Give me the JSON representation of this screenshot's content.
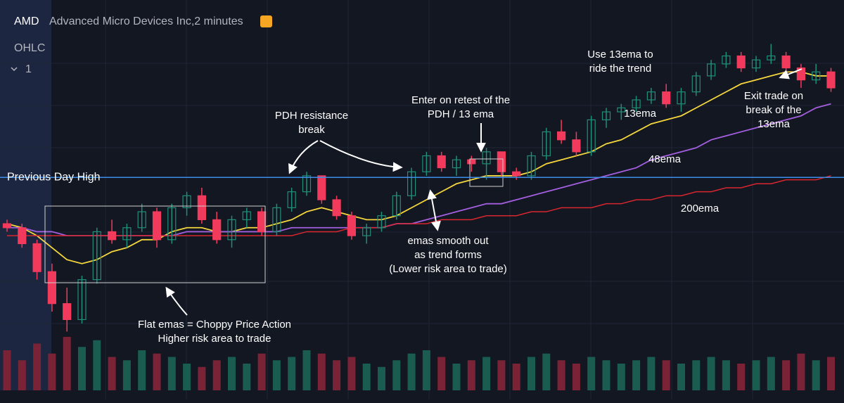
{
  "header": {
    "symbol": "AMD",
    "description": "Advanced Micro Devices Inc,2 minutes",
    "study": "OHLC",
    "interval": "1"
  },
  "chart_data": {
    "type": "candlestick",
    "ylim": [
      0,
      100
    ],
    "y2lim": [
      0,
      100
    ],
    "up_color": "#1f8f79",
    "down_color": "#f23a5c",
    "candles": [
      [
        44,
        45,
        42,
        43
      ],
      [
        43,
        44,
        38,
        39
      ],
      [
        39,
        40,
        30,
        32
      ],
      [
        32,
        34,
        22,
        24
      ],
      [
        24,
        28,
        17,
        20
      ],
      [
        20,
        31,
        19,
        30
      ],
      [
        30,
        43,
        29,
        42
      ],
      [
        42,
        45,
        39,
        40
      ],
      [
        40,
        44,
        38,
        43
      ],
      [
        43,
        49,
        42,
        47
      ],
      [
        47,
        48,
        38,
        40
      ],
      [
        40,
        49,
        39,
        48
      ],
      [
        48,
        52,
        46,
        51
      ],
      [
        51,
        53,
        44,
        45
      ],
      [
        45,
        47,
        39,
        40
      ],
      [
        40,
        46,
        38,
        45
      ],
      [
        45,
        48,
        43,
        47
      ],
      [
        47,
        48,
        41,
        42
      ],
      [
        42,
        49,
        41,
        48
      ],
      [
        48,
        53,
        47,
        52
      ],
      [
        52,
        57,
        51,
        56
      ],
      [
        56,
        56,
        49,
        50
      ],
      [
        50,
        51,
        45,
        46
      ],
      [
        46,
        47,
        40,
        41
      ],
      [
        41,
        44,
        39,
        43
      ],
      [
        43,
        47,
        42,
        46
      ],
      [
        46,
        52,
        45,
        51
      ],
      [
        51,
        58,
        50,
        57
      ],
      [
        57,
        62,
        56,
        61
      ],
      [
        61,
        62,
        57,
        58
      ],
      [
        58,
        61,
        56,
        60
      ],
      [
        60,
        61,
        57,
        59
      ],
      [
        59,
        63,
        55,
        62
      ],
      [
        62,
        62,
        56,
        57
      ],
      [
        57,
        58,
        55,
        56
      ],
      [
        56,
        62,
        55,
        61
      ],
      [
        61,
        68,
        60,
        67
      ],
      [
        67,
        70,
        64,
        65
      ],
      [
        65,
        67,
        61,
        62
      ],
      [
        62,
        71,
        61,
        70
      ],
      [
        70,
        73,
        68,
        72
      ],
      [
        72,
        74,
        70,
        73
      ],
      [
        73,
        76,
        72,
        75
      ],
      [
        75,
        78,
        74,
        77
      ],
      [
        77,
        79,
        73,
        74
      ],
      [
        74,
        78,
        72,
        77
      ],
      [
        77,
        82,
        76,
        81
      ],
      [
        81,
        85,
        80,
        84
      ],
      [
        84,
        87,
        83,
        86
      ],
      [
        86,
        87,
        82,
        83
      ],
      [
        83,
        86,
        82,
        85
      ],
      [
        85,
        89,
        84,
        86
      ],
      [
        86,
        87,
        82,
        83
      ],
      [
        83,
        84,
        78,
        80
      ],
      [
        80,
        84,
        79,
        82
      ],
      [
        82,
        83,
        77,
        78
      ]
    ],
    "volume": [
      60,
      45,
      70,
      55,
      80,
      65,
      75,
      50,
      45,
      60,
      55,
      50,
      40,
      35,
      45,
      50,
      40,
      55,
      45,
      50,
      60,
      55,
      45,
      50,
      40,
      35,
      45,
      55,
      60,
      50,
      40,
      45,
      50,
      45,
      40,
      50,
      55,
      45,
      40,
      50,
      45,
      40,
      45,
      50,
      45,
      40,
      45,
      50,
      45,
      40,
      45,
      50,
      45,
      55,
      45,
      50
    ],
    "series": [
      {
        "name": "13ema",
        "color": "#f5d63d",
        "values": [
          44,
          43,
          41,
          38,
          35,
          34,
          35,
          37,
          38,
          40,
          40,
          42,
          43,
          43,
          42,
          42,
          43,
          43,
          44,
          45,
          47,
          48,
          47,
          46,
          45,
          45,
          46,
          48,
          50,
          52,
          54,
          55,
          56,
          56,
          56,
          57,
          59,
          60,
          61,
          62,
          64,
          65,
          67,
          69,
          70,
          71,
          73,
          75,
          77,
          79,
          80,
          81,
          82,
          82,
          81,
          81
        ]
      },
      {
        "name": "48ema",
        "color": "#a35fe0",
        "values": [
          43,
          43,
          42,
          42,
          41,
          41,
          41,
          41,
          41,
          41,
          41,
          41,
          42,
          42,
          42,
          42,
          42,
          42,
          42,
          43,
          43,
          43,
          43,
          43,
          43,
          43,
          44,
          44,
          45,
          46,
          47,
          48,
          49,
          49,
          50,
          51,
          52,
          53,
          54,
          55,
          56,
          57,
          58,
          60,
          61,
          62,
          63,
          65,
          66,
          67,
          68,
          69,
          70,
          71,
          73,
          74
        ]
      },
      {
        "name": "200ema",
        "color": "#d9262f",
        "values": [
          41,
          41,
          41,
          41,
          41,
          41,
          41,
          41,
          41,
          41,
          41,
          41,
          41,
          41,
          41,
          41,
          41,
          41,
          41,
          41,
          42,
          42,
          42,
          43,
          43,
          43,
          44,
          44,
          44,
          45,
          45,
          45,
          46,
          46,
          46,
          47,
          47,
          48,
          48,
          48,
          49,
          49,
          50,
          50,
          51,
          51,
          52,
          52,
          53,
          53,
          54,
          54,
          55,
          55,
          55,
          56
        ]
      }
    ],
    "pdh": {
      "label": "Previous Day High",
      "value": 55.6
    },
    "annotations": [
      [
        "PDH resistance",
        "break"
      ],
      [
        "Enter on retest of the",
        "PDH / 13 ema"
      ],
      [
        "Use 13ema to",
        "ride the trend"
      ],
      [
        "Exit trade on",
        "break of the",
        "13ema"
      ],
      [
        "emas smooth out",
        "as trend forms",
        "(Lower risk area to trade)"
      ],
      [
        "Flat emas = Choppy Price Action",
        "Higher risk area to trade"
      ]
    ]
  }
}
